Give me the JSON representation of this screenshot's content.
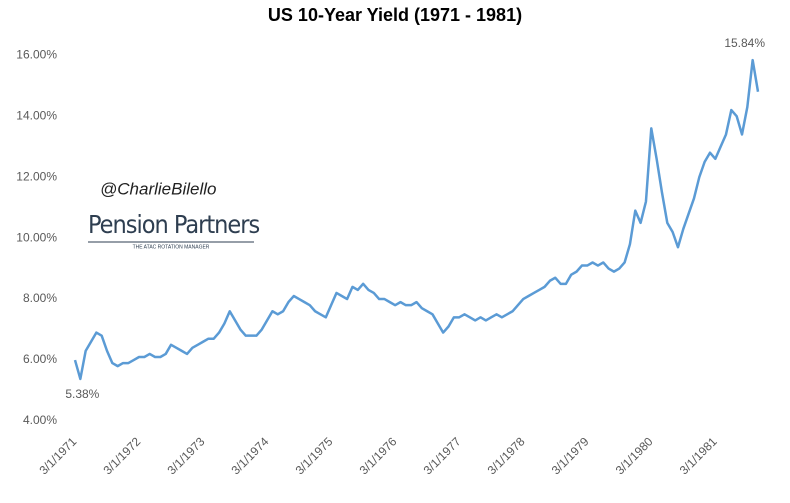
{
  "chart_data": {
    "type": "line",
    "title": "US 10-Year Yield (1971 - 1981)",
    "annotations": [
      "@CharlieBilello",
      "Pension Partners",
      "THE ATAC ROTATION MANAGER"
    ],
    "categories": [
      "3/1/1971",
      null,
      null,
      null,
      null,
      null,
      null,
      null,
      null,
      null,
      null,
      null,
      "3/1/1972",
      null,
      null,
      null,
      null,
      null,
      null,
      null,
      null,
      null,
      null,
      null,
      "3/1/1973",
      null,
      null,
      null,
      null,
      null,
      null,
      null,
      null,
      null,
      null,
      null,
      "3/1/1974",
      null,
      null,
      null,
      null,
      null,
      null,
      null,
      null,
      null,
      null,
      null,
      "3/1/1975",
      null,
      null,
      null,
      null,
      null,
      null,
      null,
      null,
      null,
      null,
      null,
      "3/1/1976",
      null,
      null,
      null,
      null,
      null,
      null,
      null,
      null,
      null,
      null,
      null,
      "3/1/1977",
      null,
      null,
      null,
      null,
      null,
      null,
      null,
      null,
      null,
      null,
      null,
      "3/1/1978",
      null,
      null,
      null,
      null,
      null,
      null,
      null,
      null,
      null,
      null,
      null,
      "3/1/1979",
      null,
      null,
      null,
      null,
      null,
      null,
      null,
      null,
      null,
      null,
      null,
      "3/1/1980",
      null,
      null,
      null,
      null,
      null,
      null,
      null,
      null,
      null,
      null,
      null,
      "3/1/1981",
      null,
      null,
      null,
      null,
      null,
      null,
      null,
      null
    ],
    "values": [
      6.0,
      5.38,
      6.3,
      6.6,
      6.9,
      6.8,
      6.3,
      5.9,
      5.8,
      5.9,
      5.9,
      6.0,
      6.1,
      6.1,
      6.2,
      6.1,
      6.1,
      6.2,
      6.5,
      6.4,
      6.3,
      6.2,
      6.4,
      6.5,
      6.6,
      6.7,
      6.7,
      6.9,
      7.2,
      7.6,
      7.3,
      7.0,
      6.8,
      6.8,
      6.8,
      7.0,
      7.3,
      7.6,
      7.5,
      7.6,
      7.9,
      8.1,
      8.0,
      7.9,
      7.8,
      7.6,
      7.5,
      7.4,
      7.8,
      8.2,
      8.1,
      8.0,
      8.4,
      8.3,
      8.5,
      8.3,
      8.2,
      8.0,
      8.0,
      7.9,
      7.8,
      7.9,
      7.8,
      7.8,
      7.9,
      7.7,
      7.6,
      7.5,
      7.2,
      6.9,
      7.1,
      7.4,
      7.4,
      7.5,
      7.4,
      7.3,
      7.4,
      7.3,
      7.4,
      7.5,
      7.4,
      7.5,
      7.6,
      7.8,
      8.0,
      8.1,
      8.2,
      8.3,
      8.4,
      8.6,
      8.7,
      8.5,
      8.5,
      8.8,
      8.9,
      9.1,
      9.1,
      9.2,
      9.1,
      9.2,
      9.0,
      8.9,
      9.0,
      9.2,
      9.8,
      10.9,
      10.5,
      11.2,
      13.6,
      12.6,
      11.5,
      10.5,
      10.2,
      9.7,
      10.3,
      10.8,
      11.3,
      12.0,
      12.5,
      12.8,
      12.6,
      13.0,
      13.4,
      14.2,
      14.0,
      13.4,
      14.3,
      15.84,
      14.8
    ],
    "value_labels": [
      null,
      "5.38%",
      null,
      null,
      null,
      null,
      null,
      null,
      null,
      null,
      null,
      null,
      null,
      null,
      null,
      null,
      null,
      null,
      null,
      null,
      null,
      null,
      null,
      null,
      null,
      null,
      null,
      null,
      null,
      null,
      null,
      null,
      null,
      null,
      null,
      null,
      null,
      null,
      null,
      null,
      null,
      null,
      null,
      null,
      null,
      null,
      null,
      null,
      null,
      null,
      null,
      null,
      null,
      null,
      null,
      null,
      null,
      null,
      null,
      null,
      null,
      null,
      null,
      null,
      null,
      null,
      null,
      null,
      null,
      null,
      null,
      null,
      null,
      null,
      null,
      null,
      null,
      null,
      null,
      null,
      null,
      null,
      null,
      null,
      null,
      null,
      null,
      null,
      null,
      null,
      null,
      null,
      null,
      null,
      null,
      null,
      null,
      null,
      null,
      null,
      null,
      null,
      null,
      null,
      null,
      null,
      null,
      null,
      null,
      null,
      null,
      null,
      null,
      null,
      null,
      null,
      null,
      null,
      null,
      null,
      null,
      null,
      null,
      null,
      null,
      null,
      null,
      "15.84%",
      null
    ],
    "color": "#5b9bd5",
    "ylim": [
      4,
      16.4
    ],
    "yticks": [
      {
        "value": 4,
        "label": "4.00%"
      },
      {
        "value": 6,
        "label": "6.00%"
      },
      {
        "value": 8,
        "label": "8.00%"
      },
      {
        "value": 10,
        "label": "10.00%"
      },
      {
        "value": 12,
        "label": "12.00%"
      },
      {
        "value": 14,
        "label": "14.00%"
      },
      {
        "value": 16,
        "label": "16.00%"
      }
    ],
    "grid": false
  }
}
